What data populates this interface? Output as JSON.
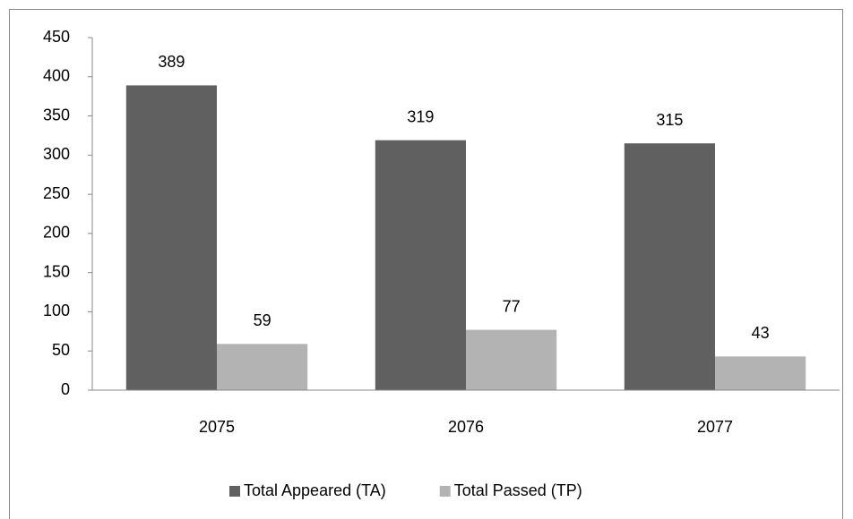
{
  "chart_data": {
    "type": "bar",
    "categories": [
      "2075",
      "2076",
      "2077"
    ],
    "series": [
      {
        "name": "Total Appeared (TA)",
        "color": "#606060",
        "values": [
          389,
          319,
          315
        ]
      },
      {
        "name": "Total Passed (TP)",
        "color": "#b3b3b3",
        "values": [
          59,
          77,
          43
        ]
      }
    ],
    "ylim": [
      0,
      450
    ],
    "yticks": [
      0,
      50,
      100,
      150,
      200,
      250,
      300,
      350,
      400,
      450
    ],
    "grid": false,
    "legend": "bottom"
  }
}
